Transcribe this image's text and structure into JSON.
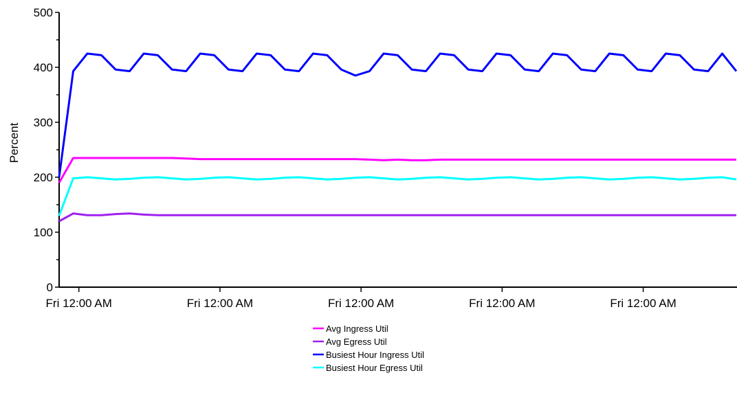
{
  "chart_data": {
    "type": "line",
    "title": "",
    "xlabel": "",
    "ylabel": "Percent",
    "ylim": [
      0,
      500
    ],
    "y_ticks": [
      0,
      100,
      200,
      300,
      400,
      500
    ],
    "x_tick_labels": [
      "Fri 12:00 AM",
      "Fri 12:00 AM",
      "Fri 12:00 AM",
      "Fri 12:00 AM",
      "Fri 12:00 AM"
    ],
    "x": [
      0,
      1,
      2,
      3,
      4,
      5,
      6,
      7,
      8,
      9,
      10,
      11,
      12,
      13,
      14,
      15,
      16,
      17,
      18,
      19,
      20,
      21,
      22,
      23,
      24,
      25,
      26,
      27,
      28,
      29,
      30,
      31,
      32,
      33,
      34,
      35,
      36,
      37,
      38,
      39,
      40,
      41,
      42,
      43,
      44,
      45,
      46,
      47,
      48
    ],
    "x_ticks_at": [
      1.4,
      11.4,
      21.4,
      31.4,
      41.4
    ],
    "grid": false,
    "legend_position": "bottom-center",
    "series": [
      {
        "name": "Avg Ingress Util",
        "color": "#ff00ff",
        "values": [
          190,
          235,
          235,
          235,
          235,
          235,
          235,
          235,
          235,
          234,
          233,
          233,
          233,
          233,
          233,
          233,
          233,
          233,
          233,
          233,
          233,
          233,
          232,
          231,
          232,
          231,
          231,
          232,
          232,
          232,
          232,
          232,
          232,
          232,
          232,
          232,
          232,
          232,
          232,
          232,
          232,
          232,
          232,
          232,
          232,
          232,
          232,
          232,
          232
        ]
      },
      {
        "name": "Avg Egress Util",
        "color": "#a020f0",
        "values": [
          120,
          134,
          131,
          131,
          133,
          134,
          132,
          131,
          131,
          131,
          131,
          131,
          131,
          131,
          131,
          131,
          131,
          131,
          131,
          131,
          131,
          131,
          131,
          131,
          131,
          131,
          131,
          131,
          131,
          131,
          131,
          131,
          131,
          131,
          131,
          131,
          131,
          131,
          131,
          131,
          131,
          131,
          131,
          131,
          131,
          131,
          131,
          131,
          131
        ]
      },
      {
        "name": "Busiest Hour Ingress Util",
        "color": "#0000ff",
        "values": [
          200,
          393,
          425,
          422,
          396,
          393,
          425,
          422,
          396,
          393,
          425,
          422,
          396,
          393,
          425,
          422,
          396,
          393,
          425,
          422,
          396,
          385,
          393,
          425,
          422,
          396,
          393,
          425,
          422,
          396,
          393,
          425,
          422,
          396,
          393,
          425,
          422,
          396,
          393,
          425,
          422,
          396,
          393,
          425,
          422,
          396,
          393,
          425,
          393
        ]
      },
      {
        "name": "Busiest Hour Egress Util",
        "color": "#00ffff",
        "values": [
          130,
          198,
          200,
          198,
          196,
          197,
          199,
          200,
          198,
          196,
          197,
          199,
          200,
          198,
          196,
          197,
          199,
          200,
          198,
          196,
          197,
          199,
          200,
          198,
          196,
          197,
          199,
          200,
          198,
          196,
          197,
          199,
          200,
          198,
          196,
          197,
          199,
          200,
          198,
          196,
          197,
          199,
          200,
          198,
          196,
          197,
          199,
          200,
          196
        ]
      }
    ]
  }
}
